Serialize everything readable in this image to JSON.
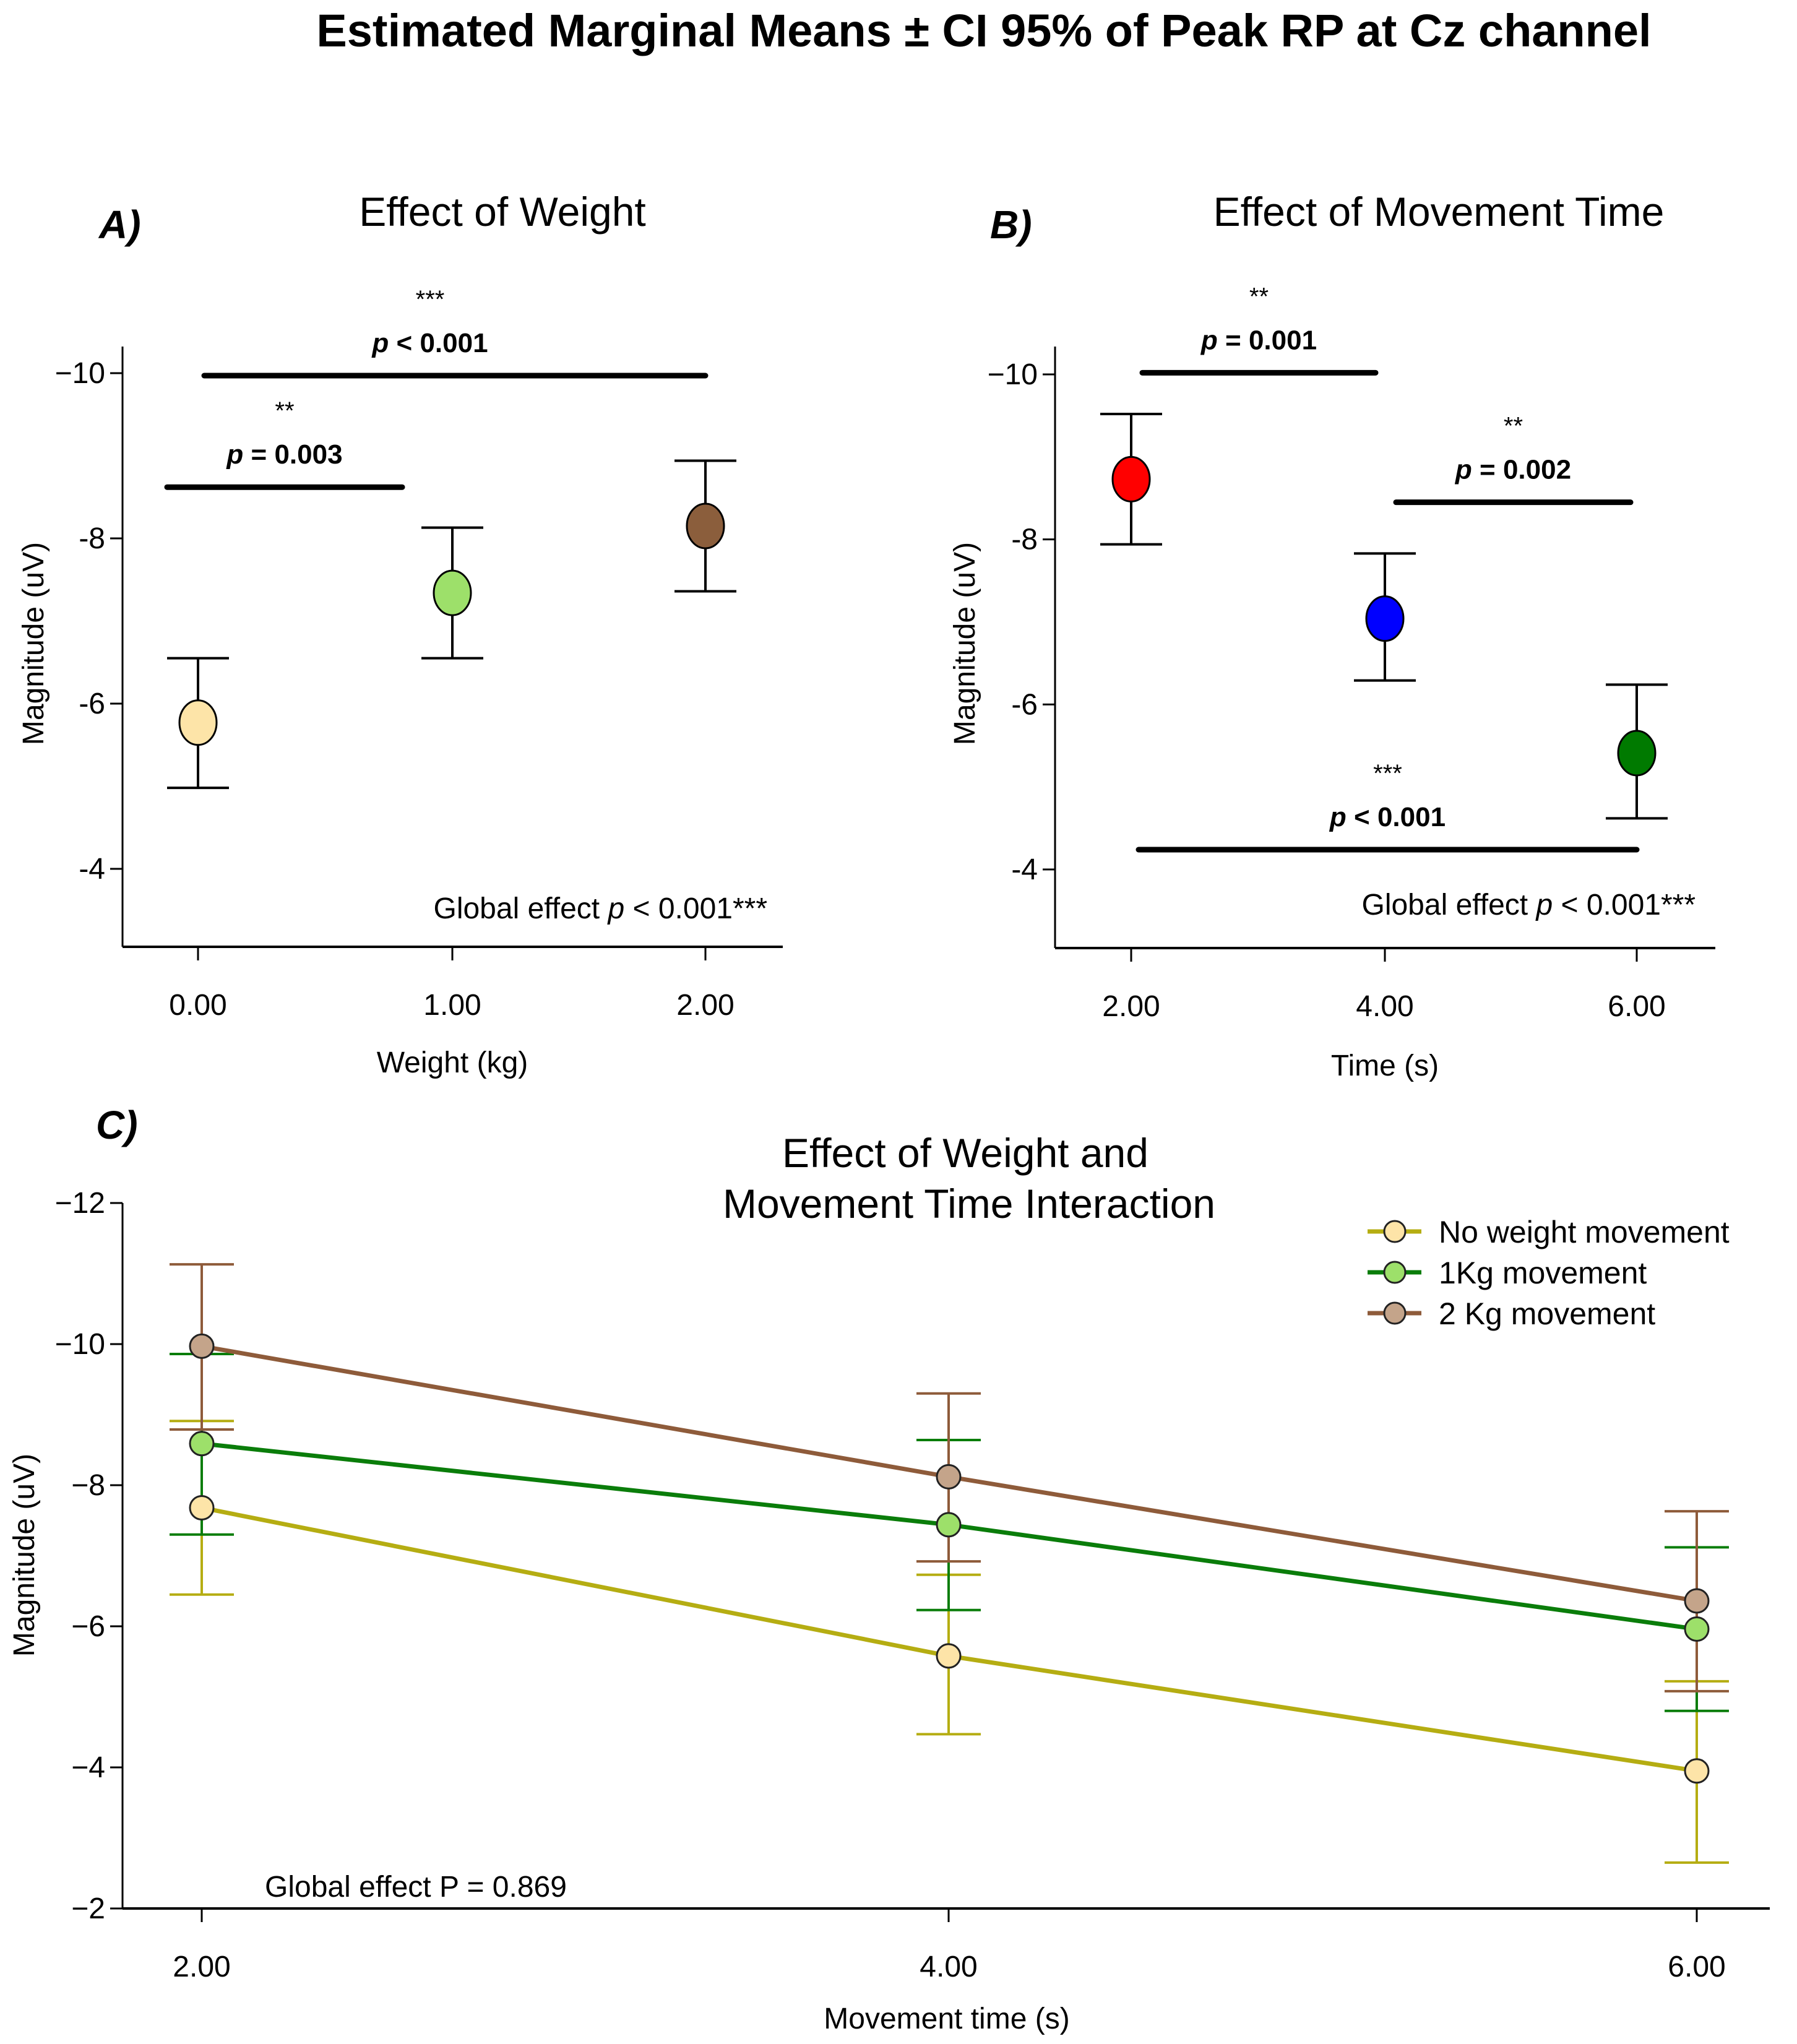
{
  "figure": {
    "title": "Estimated Marginal Means ± CI 95% of Peak RP at Cz channel"
  },
  "chart_data": [
    {
      "panel": "A)",
      "type": "scatter",
      "title": "Effect of Weight",
      "xlabel": "Weight (kg)",
      "ylabel": "Magnitude (uV)",
      "categories": [
        "0.00",
        "1.00",
        "2.00"
      ],
      "y_ticks": [
        "−10",
        "-8",
        "-6",
        "-4"
      ],
      "y_tick_values": [
        -10,
        -8,
        -6,
        -4
      ],
      "ylim": [
        -3.0,
        -10.4
      ],
      "y_inverted": true,
      "points": [
        {
          "x": "0.00",
          "mean": -5.77,
          "ci_low": -4.98,
          "ci_high": -6.55,
          "color": "#fde4a8"
        },
        {
          "x": "1.00",
          "mean": -7.34,
          "ci_low": -6.55,
          "ci_high": -8.13,
          "color": "#9de06a"
        },
        {
          "x": "2.00",
          "mean": -8.15,
          "ci_low": -7.36,
          "ci_high": -8.94,
          "color": "#8b5e3c"
        }
      ],
      "comparisons": [
        {
          "from": "0.00",
          "to": "2.00",
          "y": -9.97,
          "stars": "***",
          "p_label": "p",
          "p_text": " < 0.001"
        },
        {
          "from": "0.00",
          "to": "1.00",
          "y": -8.62,
          "stars": "**",
          "p_label": "p",
          "p_text": " = 0.003"
        }
      ],
      "global_effect": {
        "prefix": "Global effect ",
        "p_label": "p",
        "suffix": " < 0.001***"
      },
      "grid": false
    },
    {
      "panel": "B)",
      "type": "scatter",
      "title": "Effect of Movement Time",
      "xlabel": "Time (s)",
      "ylabel": "Magnitude (uV)",
      "categories": [
        "2.00",
        "4.00",
        "6.00"
      ],
      "y_ticks": [
        "−10",
        "-8",
        "-6",
        "-4"
      ],
      "y_tick_values": [
        -10,
        -8,
        -6,
        -4
      ],
      "ylim": [
        -3.0,
        -10.4
      ],
      "y_inverted": true,
      "points": [
        {
          "x": "2.00",
          "mean": -8.73,
          "ci_low": -7.94,
          "ci_high": -9.52,
          "color": "#ff0000"
        },
        {
          "x": "4.00",
          "mean": -7.04,
          "ci_low": -6.29,
          "ci_high": -7.83,
          "color": "#0000ff"
        },
        {
          "x": "6.00",
          "mean": -5.41,
          "ci_low": -4.62,
          "ci_high": -6.24,
          "color": "#007a00"
        }
      ],
      "comparisons": [
        {
          "from": "2.00",
          "to": "4.00",
          "y": -10.02,
          "stars": "**",
          "p_label": "p",
          "p_text": " = 0.001"
        },
        {
          "from": "4.00",
          "to": "6.00",
          "y": -8.45,
          "stars": "**",
          "p_label": "p",
          "p_text": " = 0.002"
        },
        {
          "from": "2.00",
          "to": "6.00",
          "y": -4.24,
          "stars": "***",
          "p_label": "p",
          "p_text": " < 0.001"
        }
      ],
      "global_effect": {
        "prefix": "Global effect ",
        "p_label": "p",
        "suffix": " < 0.001***"
      },
      "grid": false
    },
    {
      "panel": "C)",
      "type": "line",
      "title": "Effect of Weight and Movement Time Interaction",
      "title_lines": [
        "Effect of Weight and",
        "Movement Time Interaction"
      ],
      "xlabel": "Movement time (s)",
      "ylabel": "Magnitude (uV)",
      "x": [
        "2.00",
        "4.00",
        "6.00"
      ],
      "x_values": [
        2,
        4,
        6
      ],
      "y_ticks": [
        "−12",
        "−10",
        "−8",
        "−6",
        "−4",
        "−2"
      ],
      "y_tick_values": [
        -12,
        -10,
        -8,
        -6,
        -4,
        -2
      ],
      "ylim": [
        -2,
        -12
      ],
      "y_inverted": true,
      "legend_position": "top-right",
      "series": [
        {
          "name": "No weight movement",
          "line_color": "#b5ad12",
          "marker_color": "#fde4a8",
          "values": [
            -7.68,
            -5.58,
            -3.95
          ],
          "ci_high": [
            -8.91,
            -6.73,
            -5.22
          ],
          "ci_low": [
            -6.45,
            -4.47,
            -2.65
          ]
        },
        {
          "name": "1Kg movement",
          "line_color": "#0a7d0a",
          "marker_color": "#9de06a",
          "values": [
            -8.59,
            -7.44,
            -5.96
          ],
          "ci_high": [
            -9.86,
            -8.64,
            -7.12
          ],
          "ci_low": [
            -7.3,
            -6.23,
            -4.8
          ]
        },
        {
          "name": "2 Kg movement",
          "line_color": "#8e5b3a",
          "marker_color": "#c4a48a",
          "values": [
            -9.97,
            -8.12,
            -6.36
          ],
          "ci_high": [
            -11.13,
            -9.3,
            -7.63
          ],
          "ci_low": [
            -8.79,
            -6.92,
            -5.08
          ]
        }
      ],
      "global_effect": {
        "text": "Global effect P = 0.869"
      },
      "grid": false
    }
  ]
}
